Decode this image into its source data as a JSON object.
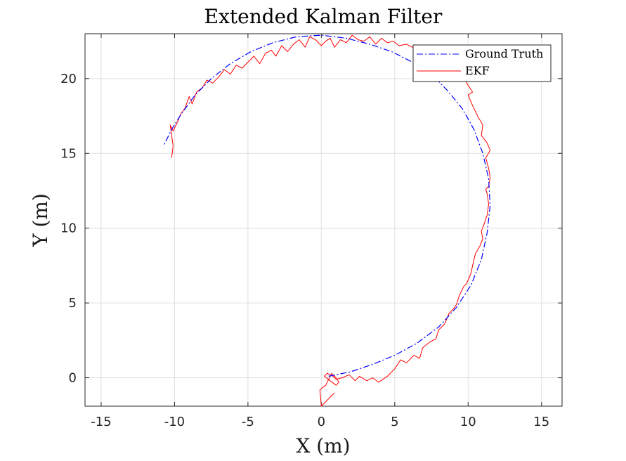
{
  "chart_data": {
    "type": "line",
    "title": "Extended Kalman Filter",
    "xlabel": "X (m)",
    "ylabel": "Y (m)",
    "xlim": [
      -16.1,
      16.4
    ],
    "ylim": [
      -1.9,
      23.0
    ],
    "xticks": [
      -15,
      -10,
      -5,
      0,
      5,
      10,
      15
    ],
    "yticks": [
      0,
      5,
      10,
      15,
      20
    ],
    "xtick_labels": [
      "-15",
      "-10",
      "-5",
      "0",
      "5",
      "10",
      "15"
    ],
    "ytick_labels": [
      "0",
      "5",
      "10",
      "15",
      "20"
    ],
    "grid": true,
    "legend_position": "top-right",
    "series": [
      {
        "name": "Ground Truth",
        "color": "#0000ff",
        "style": "dash-dot",
        "x": [
          0.5,
          2.0,
          3.5,
          5.0,
          6.5,
          8.0,
          9.2,
          10.2,
          10.9,
          11.3,
          11.5,
          11.4,
          11.0,
          10.4,
          9.6,
          8.6,
          7.5,
          6.2,
          4.8,
          3.3,
          1.7,
          0.0,
          -1.7,
          -3.3,
          -4.8,
          -6.2,
          -7.5,
          -8.6,
          -9.5,
          -10.2,
          -10.7
        ],
        "y": [
          0.1,
          0.4,
          0.9,
          1.5,
          2.3,
          3.4,
          4.7,
          6.2,
          7.9,
          9.7,
          11.5,
          13.3,
          15.0,
          16.6,
          18.0,
          19.2,
          20.3,
          21.1,
          21.8,
          22.3,
          22.7,
          22.9,
          22.8,
          22.4,
          21.8,
          21.0,
          20.0,
          18.9,
          17.7,
          16.6,
          15.6
        ]
      },
      {
        "name": "EKF",
        "color": "#ff0000",
        "style": "solid",
        "x": [
          0.9,
          0.5,
          0.0,
          -0.1,
          0.3,
          0.5,
          0.7,
          1.0,
          1.2,
          1.0,
          0.6,
          0.2,
          0.4,
          0.8,
          1.0,
          1.4,
          1.9,
          2.3,
          2.6,
          3.1,
          3.5,
          3.9,
          4.2,
          4.5,
          5.0,
          5.4,
          5.8,
          6.3,
          6.7,
          6.9,
          7.4,
          7.8,
          8.0,
          8.4,
          8.7,
          9.0,
          9.2,
          9.4,
          9.7,
          9.9,
          10.2,
          10.3,
          10.5,
          10.8,
          11.0,
          10.9,
          11.1,
          11.3,
          11.4,
          11.3,
          11.2,
          11.4,
          11.5,
          11.4,
          11.2,
          11.5,
          11.3,
          10.9,
          11.0,
          10.7,
          10.6,
          10.3,
          10.0,
          10.3,
          9.9,
          9.6,
          9.2,
          8.9,
          8.6,
          8.2,
          7.8,
          7.4,
          7.0,
          6.6,
          6.2,
          5.8,
          5.3,
          4.9,
          4.5,
          4.1,
          3.7,
          3.3,
          2.9,
          2.5,
          2.1,
          1.7,
          1.3,
          0.9,
          0.6,
          0.3,
          0.0,
          -0.4,
          -0.8,
          -1.1,
          -1.5,
          -1.9,
          -2.3,
          -2.7,
          -3.1,
          -3.4,
          -3.8,
          -4.2,
          -4.6,
          -5.0,
          -5.4,
          -5.8,
          -6.2,
          -6.6,
          -7.0,
          -7.4,
          -7.8,
          -8.1,
          -8.5,
          -8.8,
          -9.0,
          -9.3,
          -9.6,
          -9.8,
          -10.1,
          -10.3,
          -10.1,
          -10.2
        ],
        "y": [
          -1.0,
          -1.4,
          -1.9,
          -0.8,
          -0.5,
          -0.1,
          0.3,
          0.0,
          -0.3,
          -0.5,
          -0.2,
          0.1,
          0.3,
          0.1,
          -0.1,
          0.0,
          0.2,
          -0.2,
          0.1,
          -0.2,
          0.0,
          -0.3,
          -0.1,
          0.1,
          0.6,
          1.2,
          1.0,
          1.5,
          1.3,
          2.0,
          2.4,
          2.6,
          3.2,
          3.6,
          4.3,
          4.6,
          4.9,
          5.5,
          6.1,
          6.3,
          7.0,
          7.5,
          8.3,
          8.8,
          9.3,
          9.8,
          10.3,
          10.9,
          11.6,
          12.3,
          12.6,
          12.8,
          13.4,
          14.0,
          14.7,
          15.2,
          15.7,
          16.2,
          16.9,
          17.4,
          17.6,
          18.2,
          18.9,
          19.1,
          19.7,
          20.2,
          20.6,
          20.9,
          21.1,
          21.3,
          21.0,
          21.6,
          21.7,
          21.9,
          22.1,
          22.3,
          22.2,
          22.5,
          22.4,
          22.7,
          22.3,
          22.8,
          22.5,
          22.6,
          22.9,
          22.4,
          22.6,
          22.1,
          22.7,
          22.5,
          22.2,
          22.6,
          22.8,
          22.1,
          22.6,
          22.3,
          21.8,
          22.2,
          21.5,
          21.9,
          21.7,
          21.0,
          21.5,
          21.1,
          20.7,
          20.9,
          20.3,
          20.6,
          20.1,
          19.7,
          19.9,
          19.4,
          19.1,
          18.3,
          18.8,
          18.0,
          17.6,
          17.1,
          16.5,
          16.9,
          15.5,
          14.7
        ]
      }
    ]
  }
}
